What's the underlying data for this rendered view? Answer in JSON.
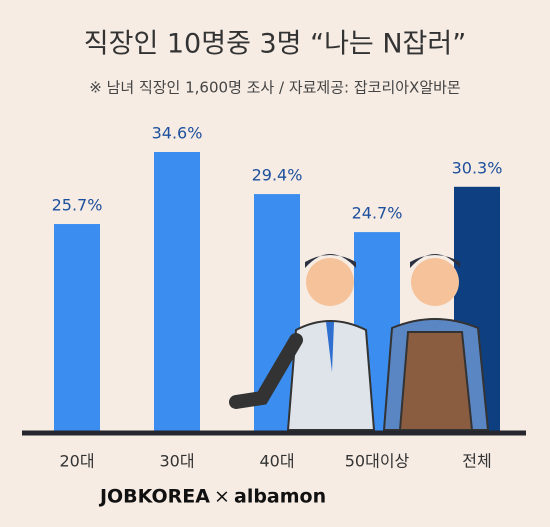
{
  "chart_data": {
    "type": "bar",
    "title": "직장인 10명중 3명 “나는 N잡러”",
    "subtitle": "※ 남녀 직장인 1,600명 조사 / 자료제공: 잡코리아X알바몬",
    "categories": [
      "20대",
      "30대",
      "40대",
      "50대이상",
      "전체"
    ],
    "values": [
      25.7,
      34.6,
      29.4,
      24.7,
      30.3
    ],
    "value_labels": [
      "25.7%",
      "34.6%",
      "29.4%",
      "24.7%",
      "30.3%"
    ],
    "colors": [
      "#3b8ef0",
      "#3b8ef0",
      "#3b8ef0",
      "#3b8ef0",
      "#0e3f80"
    ],
    "footer": {
      "brand_left": "JOBKOREA",
      "separator": "×",
      "brand_right": "albamon"
    }
  }
}
